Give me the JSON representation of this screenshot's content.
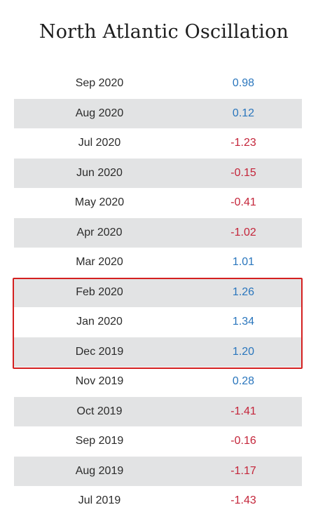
{
  "title": "North Atlantic Oscillation",
  "colors": {
    "positive": "#2a76bd",
    "negative": "#c4253a",
    "highlight_border": "#d42020",
    "row_shade": "#e2e3e4"
  },
  "chart_data": {
    "type": "table",
    "title": "North Atlantic Oscillation",
    "rows": [
      {
        "date": "Sep 2020",
        "value": "0.98"
      },
      {
        "date": "Aug 2020",
        "value": "0.12"
      },
      {
        "date": "Jul 2020",
        "value": "-1.23"
      },
      {
        "date": "Jun 2020",
        "value": "-0.15"
      },
      {
        "date": "May 2020",
        "value": "-0.41"
      },
      {
        "date": "Apr 2020",
        "value": "-1.02"
      },
      {
        "date": "Mar 2020",
        "value": "1.01"
      },
      {
        "date": "Feb 2020",
        "value": "1.26"
      },
      {
        "date": "Jan 2020",
        "value": "1.34"
      },
      {
        "date": "Dec 2019",
        "value": "1.20"
      },
      {
        "date": "Nov 2019",
        "value": "0.28"
      },
      {
        "date": "Oct 2019",
        "value": "-1.41"
      },
      {
        "date": "Sep 2019",
        "value": "-0.16"
      },
      {
        "date": "Aug 2019",
        "value": "-1.17"
      },
      {
        "date": "Jul 2019",
        "value": "-1.43"
      }
    ],
    "highlighted_rows": [
      "Feb 2020",
      "Jan 2020",
      "Dec 2019"
    ]
  }
}
